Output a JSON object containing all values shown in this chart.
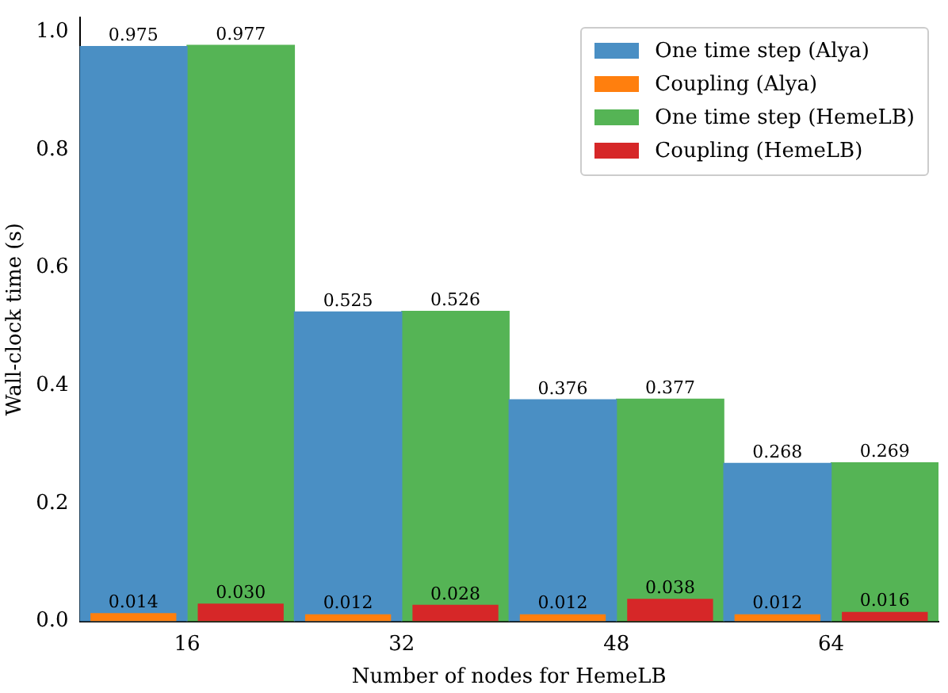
{
  "chart_data": {
    "type": "bar",
    "xlabel": "Number of nodes for HemeLB",
    "ylabel": "Wall-clock time (s)",
    "categories": [
      "16",
      "32",
      "48",
      "64"
    ],
    "series": [
      {
        "name": "One time step (Alya)",
        "color": "#4a8fc4",
        "values": [
          0.975,
          0.525,
          0.376,
          0.268
        ],
        "value_labels": [
          "0.975",
          "0.525",
          "0.376",
          "0.268"
        ]
      },
      {
        "name": "Coupling (Alya)",
        "color": "#ff7f0e",
        "values": [
          0.014,
          0.012,
          0.012,
          0.012
        ],
        "value_labels": [
          "0.014",
          "0.012",
          "0.012",
          "0.012"
        ]
      },
      {
        "name": "One time step (HemeLB)",
        "color": "#55b455",
        "values": [
          0.977,
          0.526,
          0.377,
          0.269
        ],
        "value_labels": [
          "0.977",
          "0.526",
          "0.377",
          "0.269"
        ]
      },
      {
        "name": "Coupling (HemeLB)",
        "color": "#d62728",
        "values": [
          0.03,
          0.028,
          0.038,
          0.016
        ],
        "value_labels": [
          "0.030",
          "0.028",
          "0.038",
          "0.016"
        ]
      }
    ],
    "ylim": [
      0,
      1.025
    ],
    "yticks": [
      {
        "value": 0,
        "label": "0.0"
      },
      {
        "value": 0.2,
        "label": "0.2"
      },
      {
        "value": 0.4,
        "label": "0.4"
      },
      {
        "value": 0.6,
        "label": "0.6"
      },
      {
        "value": 0.8,
        "label": "0.8"
      },
      {
        "value": 1,
        "label": "1.0"
      }
    ],
    "grid": false,
    "legend": "top right"
  }
}
